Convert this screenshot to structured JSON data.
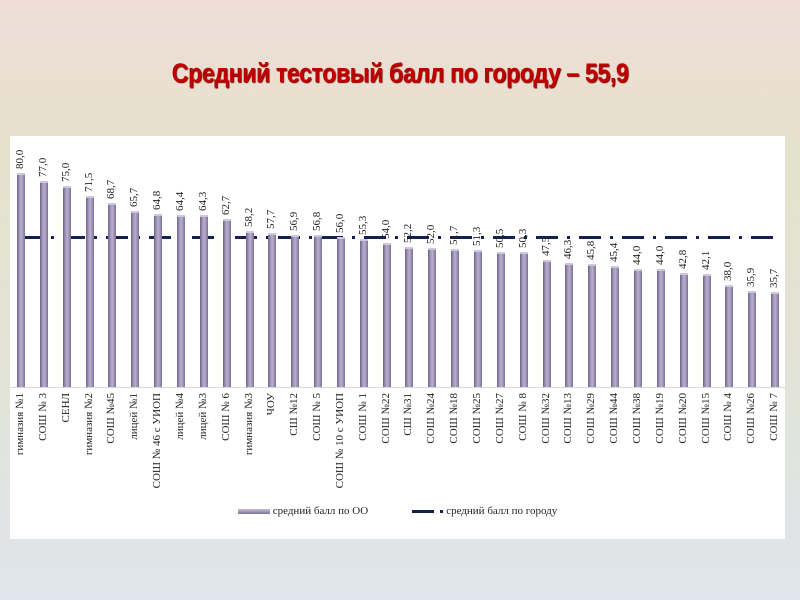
{
  "slide": {
    "title": "Средний тестовый балл по городу – 55,9"
  },
  "legend": {
    "series_bar": "средний балл по ОО",
    "series_line": "средний балл по городу"
  },
  "colors": {
    "title": "#c00000",
    "bar": "#8f84aa",
    "city_line": "#14214f"
  },
  "chart_data": {
    "type": "bar",
    "title": "Средний тестовый балл по городу – 55,9",
    "xlabel": "",
    "ylabel": "",
    "ylim": [
      0,
      80
    ],
    "grid": false,
    "legend_position": "bottom",
    "categories": [
      "гимназия №1",
      "СОШ № 3",
      "СЕНЛ",
      "гимназия №2",
      "СОШ №45",
      "лицей №1",
      "СОШ № 46 с УИОП",
      "лицей №4",
      "лицей №3",
      "СОШ № 6",
      "гимназия №3",
      "ЧОУ",
      "СШ №12",
      "СОШ № 5",
      "СОШ № 10 с УИОП",
      "СОШ № 1",
      "СОШ №22",
      "СШ №31",
      "СОШ №24",
      "СОШ №18",
      "СОШ №25",
      "СОШ №27",
      "СОШ № 8",
      "СОШ №32",
      "СОШ №13",
      "СОШ №29",
      "СОШ №44",
      "СОШ №38",
      "СОШ №19",
      "СОШ №20",
      "СОШ №15",
      "СОШ № 4",
      "СОШ №26",
      "СОШ № 7"
    ],
    "series": [
      {
        "name": "средний балл по ОО",
        "type": "bar",
        "values": [
          80.0,
          77.0,
          75.0,
          71.5,
          68.7,
          65.7,
          64.8,
          64.4,
          64.3,
          62.7,
          58.2,
          57.7,
          56.9,
          56.8,
          56.0,
          55.3,
          54.0,
          52.2,
          52.0,
          51.7,
          51.3,
          50.5,
          50.3,
          47.5,
          46.3,
          45.8,
          45.4,
          44.0,
          44.0,
          42.8,
          42.1,
          38.0,
          35.9,
          35.7
        ],
        "labels": [
          "80,0",
          "77,0",
          "75,0",
          "71,5",
          "68,7",
          "65,7",
          "64,8",
          "64,4",
          "64,3",
          "62,7",
          "58,2",
          "57,7",
          "56,9",
          "56,8",
          "56,0",
          "55,3",
          "54,0",
          "52,2",
          "52,0",
          "51,7",
          "51,3",
          "50,5",
          "50,3",
          "47,5",
          "46,3",
          "45,8",
          "45,4",
          "44,0",
          "44,0",
          "42,8",
          "42,1",
          "38,0",
          "35,9",
          "35,7"
        ]
      },
      {
        "name": "средний балл по городу",
        "type": "line",
        "style": "dash-dot",
        "value": 55.9
      }
    ]
  }
}
